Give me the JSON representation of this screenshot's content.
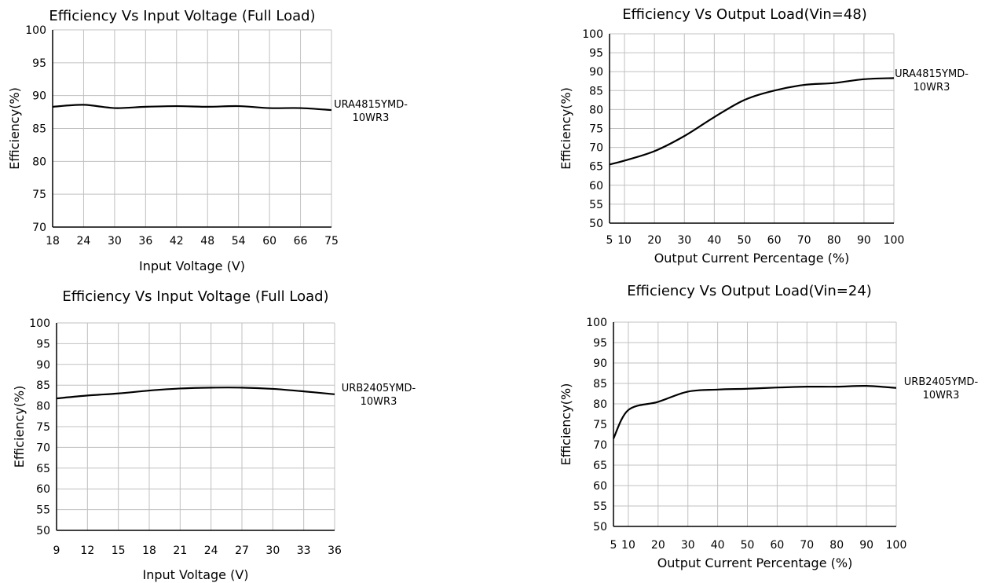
{
  "colors": {
    "grid": "#c0c0c0",
    "line": "#000000",
    "axis": "#000000"
  },
  "chart_data": [
    {
      "type": "line",
      "title": "Efficiency Vs Input Voltage (Full Load)",
      "xlabel": "Input Voltage (V)",
      "ylabel": "Efficiency(%)",
      "xlim": [
        18,
        75
      ],
      "ylim": [
        70,
        100
      ],
      "xticks": [
        "18",
        "24",
        "30",
        "36",
        "42",
        "48",
        "54",
        "60",
        "66",
        "75"
      ],
      "yticks": [
        "70",
        "75",
        "80",
        "85",
        "90",
        "95",
        "100"
      ],
      "grid": true,
      "legend_position": "right",
      "series": [
        {
          "name": "URA4815YMD-10WR3",
          "name_lines": [
            "URA4815YMD-",
            "10WR3"
          ],
          "values": [
            88.3,
            88.6,
            88.1,
            88.3,
            88.4,
            88.3,
            88.4,
            88.1,
            88.1,
            87.8
          ]
        }
      ]
    },
    {
      "type": "line",
      "title": "Efficiency Vs Output Load(Vin=48)",
      "xlabel": "Output Current Percentage (%)",
      "ylabel": "Efficiency(%)",
      "xlim": [
        5,
        100
      ],
      "ylim": [
        50,
        100
      ],
      "xticks": [
        "5",
        "10",
        "20",
        "30",
        "40",
        "50",
        "60",
        "70",
        "80",
        "90",
        "100"
      ],
      "yticks": [
        "50",
        "55",
        "60",
        "65",
        "70",
        "75",
        "80",
        "85",
        "90",
        "95",
        "100"
      ],
      "grid": true,
      "legend_position": "top-right",
      "series": [
        {
          "name": "URA4815YMD-10WR3",
          "name_lines": [
            "URA4815YMD-",
            "10WR3"
          ],
          "x": [
            5,
            10,
            20,
            30,
            40,
            50,
            60,
            70,
            80,
            90,
            100
          ],
          "values": [
            65.5,
            66.5,
            69,
            73,
            78,
            82.5,
            85,
            86.5,
            87,
            88,
            88.3
          ]
        }
      ]
    },
    {
      "type": "line",
      "title": "Efficiency Vs Input Voltage (Full Load)",
      "xlabel": "Input Voltage (V)",
      "ylabel": "Efficiency(%)",
      "xlim": [
        9,
        36
      ],
      "ylim": [
        50,
        100
      ],
      "xticks": [
        "9",
        "12",
        "15",
        "18",
        "21",
        "24",
        "27",
        "30",
        "33",
        "36"
      ],
      "yticks": [
        "50",
        "55",
        "60",
        "65",
        "70",
        "75",
        "80",
        "85",
        "90",
        "95",
        "100"
      ],
      "grid": true,
      "legend_position": "right",
      "series": [
        {
          "name": "URB2405YMD-10WR3",
          "name_lines": [
            "URB2405YMD-",
            "10WR3"
          ],
          "values": [
            81.8,
            82.5,
            83,
            83.7,
            84.2,
            84.4,
            84.4,
            84.1,
            83.5,
            82.8
          ]
        }
      ]
    },
    {
      "type": "line",
      "title": "Efficiency Vs Output Load(Vin=24)",
      "xlabel": "Output Current Percentage (%)",
      "ylabel": "Efficiency(%)",
      "xlim": [
        5,
        100
      ],
      "ylim": [
        50,
        100
      ],
      "xticks": [
        "5",
        "10",
        "20",
        "30",
        "40",
        "50",
        "60",
        "70",
        "80",
        "90",
        "100"
      ],
      "yticks": [
        "50",
        "55",
        "60",
        "65",
        "70",
        "75",
        "80",
        "85",
        "90",
        "95",
        "100"
      ],
      "grid": true,
      "legend_position": "top-right",
      "series": [
        {
          "name": "URB2405YMD-10WR3",
          "name_lines": [
            "URB2405YMD-",
            "10WR3"
          ],
          "x": [
            5,
            10,
            20,
            30,
            40,
            50,
            60,
            70,
            80,
            90,
            100
          ],
          "values": [
            71.5,
            78.5,
            80.5,
            83,
            83.5,
            83.7,
            84,
            84.2,
            84.2,
            84.4,
            83.9
          ]
        }
      ]
    }
  ]
}
